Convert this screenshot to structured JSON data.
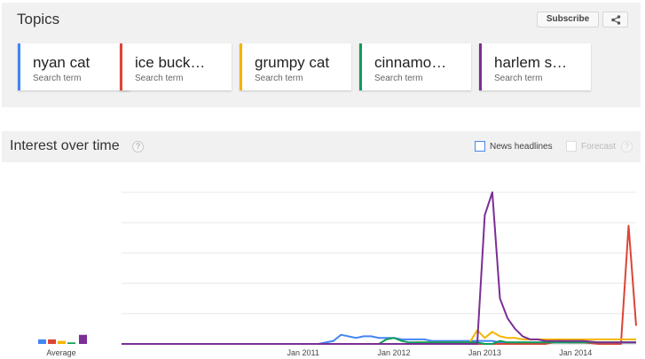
{
  "topics": {
    "title": "Topics",
    "subscribe_label": "Subscribe",
    "share_icon": "share-icon",
    "terms": [
      {
        "name": "nyan cat",
        "sub": "Search term",
        "color": "#4285f4"
      },
      {
        "name": "ice buck…",
        "sub": "Search term",
        "color": "#db4437"
      },
      {
        "name": "grumpy cat",
        "sub": "Search term",
        "color": "#f4b400"
      },
      {
        "name": "cinnamo…",
        "sub": "Search term",
        "color": "#0f9d58"
      },
      {
        "name": "harlem s…",
        "sub": "Search term",
        "color": "#7b2e94"
      }
    ]
  },
  "interest": {
    "title": "Interest over time",
    "help_icon": "?",
    "news_label": "News headlines",
    "forecast_label": "Forecast",
    "forecast_help": "?"
  },
  "chart_data": {
    "type": "line",
    "average_label": "Average",
    "x_ticks": [
      "Jan 2011",
      "Jan 2012",
      "Jan 2013",
      "Jan 2014"
    ],
    "ylim": [
      0,
      100
    ],
    "grid": true,
    "averages": [
      {
        "name": "nyan cat",
        "value": 3,
        "color": "#4285f4"
      },
      {
        "name": "ice buck…",
        "value": 3,
        "color": "#db4437"
      },
      {
        "name": "grumpy cat",
        "value": 2,
        "color": "#f4b400"
      },
      {
        "name": "cinnamo…",
        "value": 1,
        "color": "#0f9d58"
      },
      {
        "name": "harlem s…",
        "value": 6,
        "color": "#7b2e94"
      }
    ],
    "x": [
      "2009-01",
      "2010-01",
      "2010-12",
      "2011-03",
      "2011-05",
      "2011-06",
      "2011-08",
      "2011-09",
      "2011-10",
      "2011-11",
      "2011-12",
      "2012-01",
      "2012-02",
      "2012-03",
      "2012-04",
      "2012-05",
      "2012-06",
      "2012-08",
      "2012-10",
      "2012-11",
      "2012-12",
      "2013-01",
      "2013-02",
      "2013-03",
      "2013-04",
      "2013-05",
      "2013-06",
      "2013-07",
      "2013-08",
      "2013-09",
      "2013-10",
      "2013-11",
      "2013-12",
      "2014-01",
      "2014-02",
      "2014-04",
      "2014-06",
      "2014-07",
      "2014-08",
      "2014-09"
    ],
    "series": [
      {
        "name": "nyan cat",
        "color": "#4285f4",
        "values": [
          0,
          0,
          0,
          0,
          2,
          6,
          4,
          5,
          5,
          4,
          4,
          4,
          3,
          3,
          3,
          3,
          2,
          2,
          2,
          2,
          2,
          2,
          2,
          1,
          1,
          1,
          1,
          1,
          1,
          1,
          1,
          1,
          1,
          1,
          1,
          1,
          1,
          1,
          1,
          1
        ]
      },
      {
        "name": "ice buck…",
        "color": "#db4437",
        "values": [
          0,
          0,
          0,
          0,
          0,
          0,
          0,
          0,
          0,
          0,
          0,
          0,
          0,
          0,
          0,
          0,
          0,
          0,
          0,
          0,
          0,
          0,
          0,
          0,
          0,
          0,
          0,
          0,
          0,
          0,
          1,
          3,
          1,
          1,
          1,
          0,
          0,
          0,
          78,
          12
        ]
      },
      {
        "name": "grumpy cat",
        "color": "#f4b400",
        "values": [
          0,
          0,
          0,
          0,
          0,
          0,
          0,
          0,
          0,
          0,
          0,
          0,
          0,
          0,
          1,
          1,
          1,
          1,
          1,
          1,
          9,
          4,
          8,
          5,
          4,
          4,
          3,
          3,
          3,
          3,
          3,
          3,
          3,
          3,
          3,
          3,
          3,
          3,
          3,
          3
        ]
      },
      {
        "name": "cinnamo…",
        "color": "#0f9d58",
        "values": [
          0,
          0,
          0,
          0,
          0,
          0,
          0,
          0,
          0,
          0,
          3,
          4,
          2,
          1,
          1,
          1,
          1,
          1,
          1,
          1,
          1,
          0,
          0,
          2,
          1,
          1,
          1,
          1,
          1,
          1,
          1,
          1,
          1,
          1,
          1,
          1,
          1,
          1,
          1,
          1
        ]
      },
      {
        "name": "harlem s…",
        "color": "#7b2e94",
        "values": [
          0,
          0,
          0,
          0,
          0,
          0,
          0,
          0,
          0,
          0,
          0,
          0,
          0,
          0,
          0,
          0,
          0,
          0,
          0,
          0,
          0,
          85,
          100,
          30,
          17,
          10,
          5,
          3,
          3,
          2,
          2,
          2,
          2,
          2,
          2,
          1,
          1,
          1,
          1,
          1
        ]
      }
    ]
  }
}
